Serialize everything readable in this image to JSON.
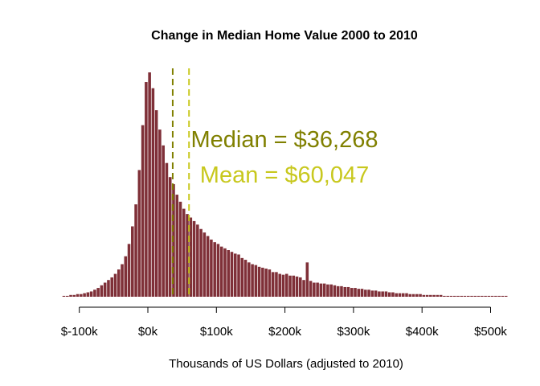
{
  "chart_data": {
    "type": "bar",
    "title": "Change in Median Home Value 2000 to 2010",
    "xlabel": "Thousands of US Dollars (adjusted to 2010)",
    "ylabel": "",
    "bin_width_k": 5,
    "xlim_k": [
      -125,
      525
    ],
    "xticks": [
      {
        "value": -100,
        "label": "$-100k"
      },
      {
        "value": 0,
        "label": "$0k"
      },
      {
        "value": 100,
        "label": "$100k"
      },
      {
        "value": 200,
        "label": "$200k"
      },
      {
        "value": 300,
        "label": "$300k"
      },
      {
        "value": 400,
        "label": "$400k"
      },
      {
        "value": 500,
        "label": "$500k"
      }
    ],
    "bins_start_k": [
      -125,
      -120,
      -115,
      -110,
      -105,
      -100,
      -95,
      -90,
      -85,
      -80,
      -75,
      -70,
      -65,
      -60,
      -55,
      -50,
      -45,
      -40,
      -35,
      -30,
      -25,
      -20,
      -15,
      -10,
      -5,
      0,
      5,
      10,
      15,
      20,
      25,
      30,
      35,
      40,
      45,
      50,
      55,
      60,
      65,
      70,
      75,
      80,
      85,
      90,
      95,
      100,
      105,
      110,
      115,
      120,
      125,
      130,
      135,
      140,
      145,
      150,
      155,
      160,
      165,
      170,
      175,
      180,
      185,
      190,
      195,
      200,
      205,
      210,
      215,
      220,
      225,
      230,
      235,
      240,
      245,
      250,
      255,
      260,
      265,
      270,
      275,
      280,
      285,
      290,
      295,
      300,
      305,
      310,
      315,
      320,
      325,
      330,
      335,
      340,
      345,
      350,
      355,
      360,
      365,
      370,
      375,
      380,
      385,
      390,
      395,
      400,
      405,
      410,
      415,
      420,
      425,
      430,
      435,
      440,
      445,
      450,
      455,
      460,
      465,
      470,
      475,
      480,
      485,
      490,
      495,
      500,
      505,
      510,
      515,
      520
    ],
    "series": [
      {
        "values": [
          1,
          1,
          2,
          2,
          3,
          3,
          4,
          5,
          6,
          8,
          10,
          13,
          16,
          19,
          22,
          26,
          31,
          37,
          46,
          60,
          80,
          105,
          144,
          195,
          244,
          255,
          237,
          212,
          190,
          172,
          152,
          136,
          128,
          116,
          108,
          100,
          94,
          90,
          86,
          82,
          77,
          73,
          69,
          65,
          62,
          60,
          57,
          55,
          53,
          51,
          49,
          48,
          44,
          42,
          39,
          37,
          36,
          34,
          33,
          32,
          31,
          28,
          28,
          26,
          25,
          26,
          24,
          24,
          23,
          22,
          19,
          39,
          18,
          16,
          16,
          15,
          15,
          14,
          14,
          13,
          12,
          12,
          11,
          11,
          10,
          10,
          9,
          9,
          8,
          8,
          7,
          7,
          6,
          6,
          6,
          5,
          5,
          4,
          4,
          4,
          4,
          3,
          3,
          3,
          3,
          2,
          2,
          2,
          2,
          2,
          2,
          1,
          1,
          1,
          1,
          1,
          1,
          1,
          1,
          1,
          1,
          1,
          1,
          1,
          1,
          1,
          1,
          1,
          1,
          1
        ],
        "color": "#7f3038"
      }
    ],
    "median": {
      "value_k": 36.268,
      "label": "Median = $36,268",
      "color": "#808000"
    },
    "mean": {
      "value_k": 60.047,
      "label": "Mean = $60,047",
      "color": "#c8c81e"
    },
    "grid": false,
    "legend": "none"
  }
}
